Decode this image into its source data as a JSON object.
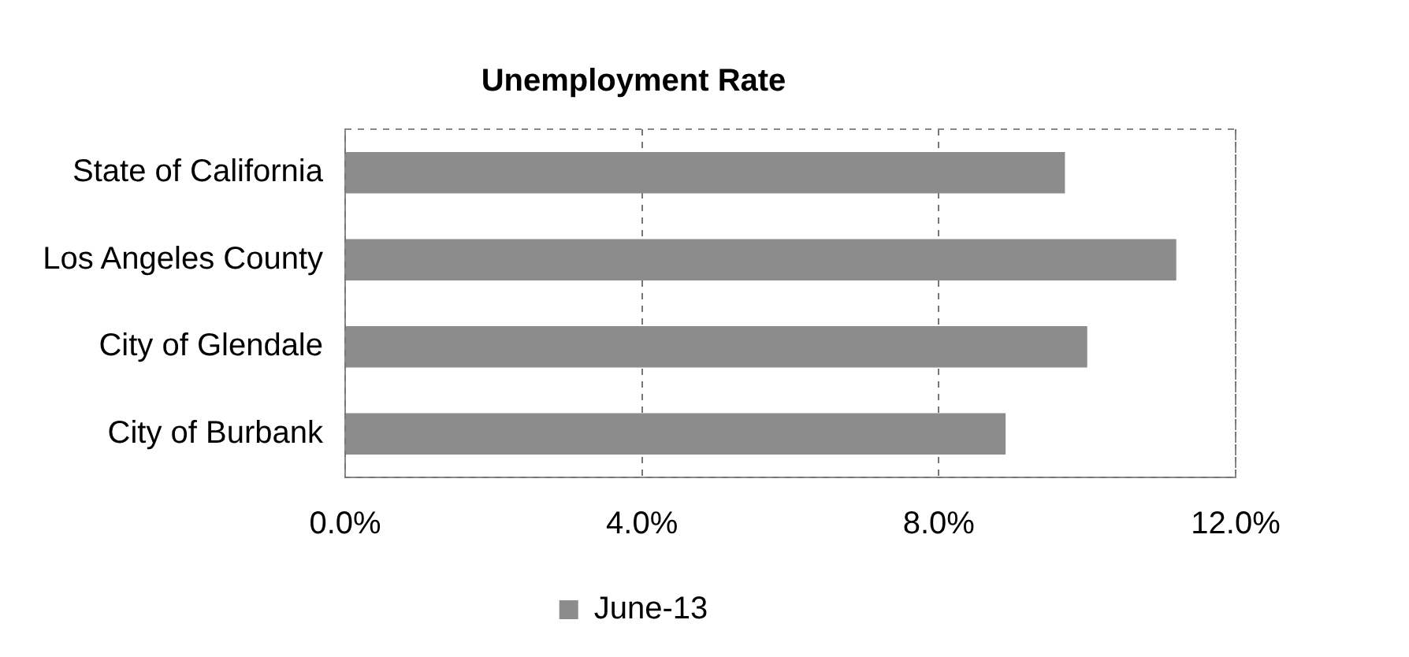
{
  "chart_data": {
    "type": "bar",
    "orientation": "horizontal",
    "title": "Unemployment Rate",
    "categories": [
      "State of California",
      "Los Angeles County",
      "City of Glendale",
      "City of Burbank"
    ],
    "series": [
      {
        "name": "June-13",
        "color": "#8c8c8c",
        "values": [
          9.7,
          11.2,
          10.0,
          8.9
        ]
      }
    ],
    "xlim": [
      0,
      12
    ],
    "xticks": [
      {
        "value": 0,
        "label": "0.0%"
      },
      {
        "value": 4,
        "label": "4.0%"
      },
      {
        "value": 8,
        "label": "8.0%"
      },
      {
        "value": 12,
        "label": "12.0%"
      }
    ],
    "grid": "x",
    "legend": "bottom"
  }
}
